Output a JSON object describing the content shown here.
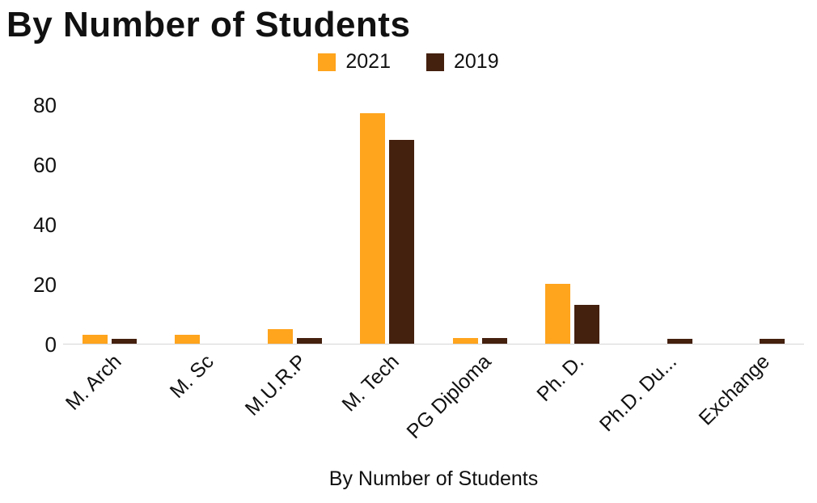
{
  "page": {
    "title": "By Number of Students"
  },
  "chart_data": {
    "type": "bar",
    "title": "By Number of Students",
    "xlabel": "By Number of Students",
    "ylabel": "",
    "ylim": [
      0,
      80
    ],
    "yticks": [
      0,
      20,
      40,
      60,
      80
    ],
    "grid": false,
    "legend_position": "top",
    "categories": [
      "M. Arch",
      "M. Sc",
      "M.U.R.P",
      "M. Tech",
      "PG Diploma",
      "Ph. D.",
      "Ph.D. Du...",
      "Exchange"
    ],
    "series": [
      {
        "name": "2021",
        "color": "#FFA41D",
        "values": [
          3,
          3,
          5,
          77,
          2,
          20,
          0,
          0
        ]
      },
      {
        "name": "2019",
        "color": "#44200E",
        "values": [
          1.5,
          0,
          2,
          68,
          2,
          13,
          1.5,
          1.5
        ]
      }
    ]
  }
}
